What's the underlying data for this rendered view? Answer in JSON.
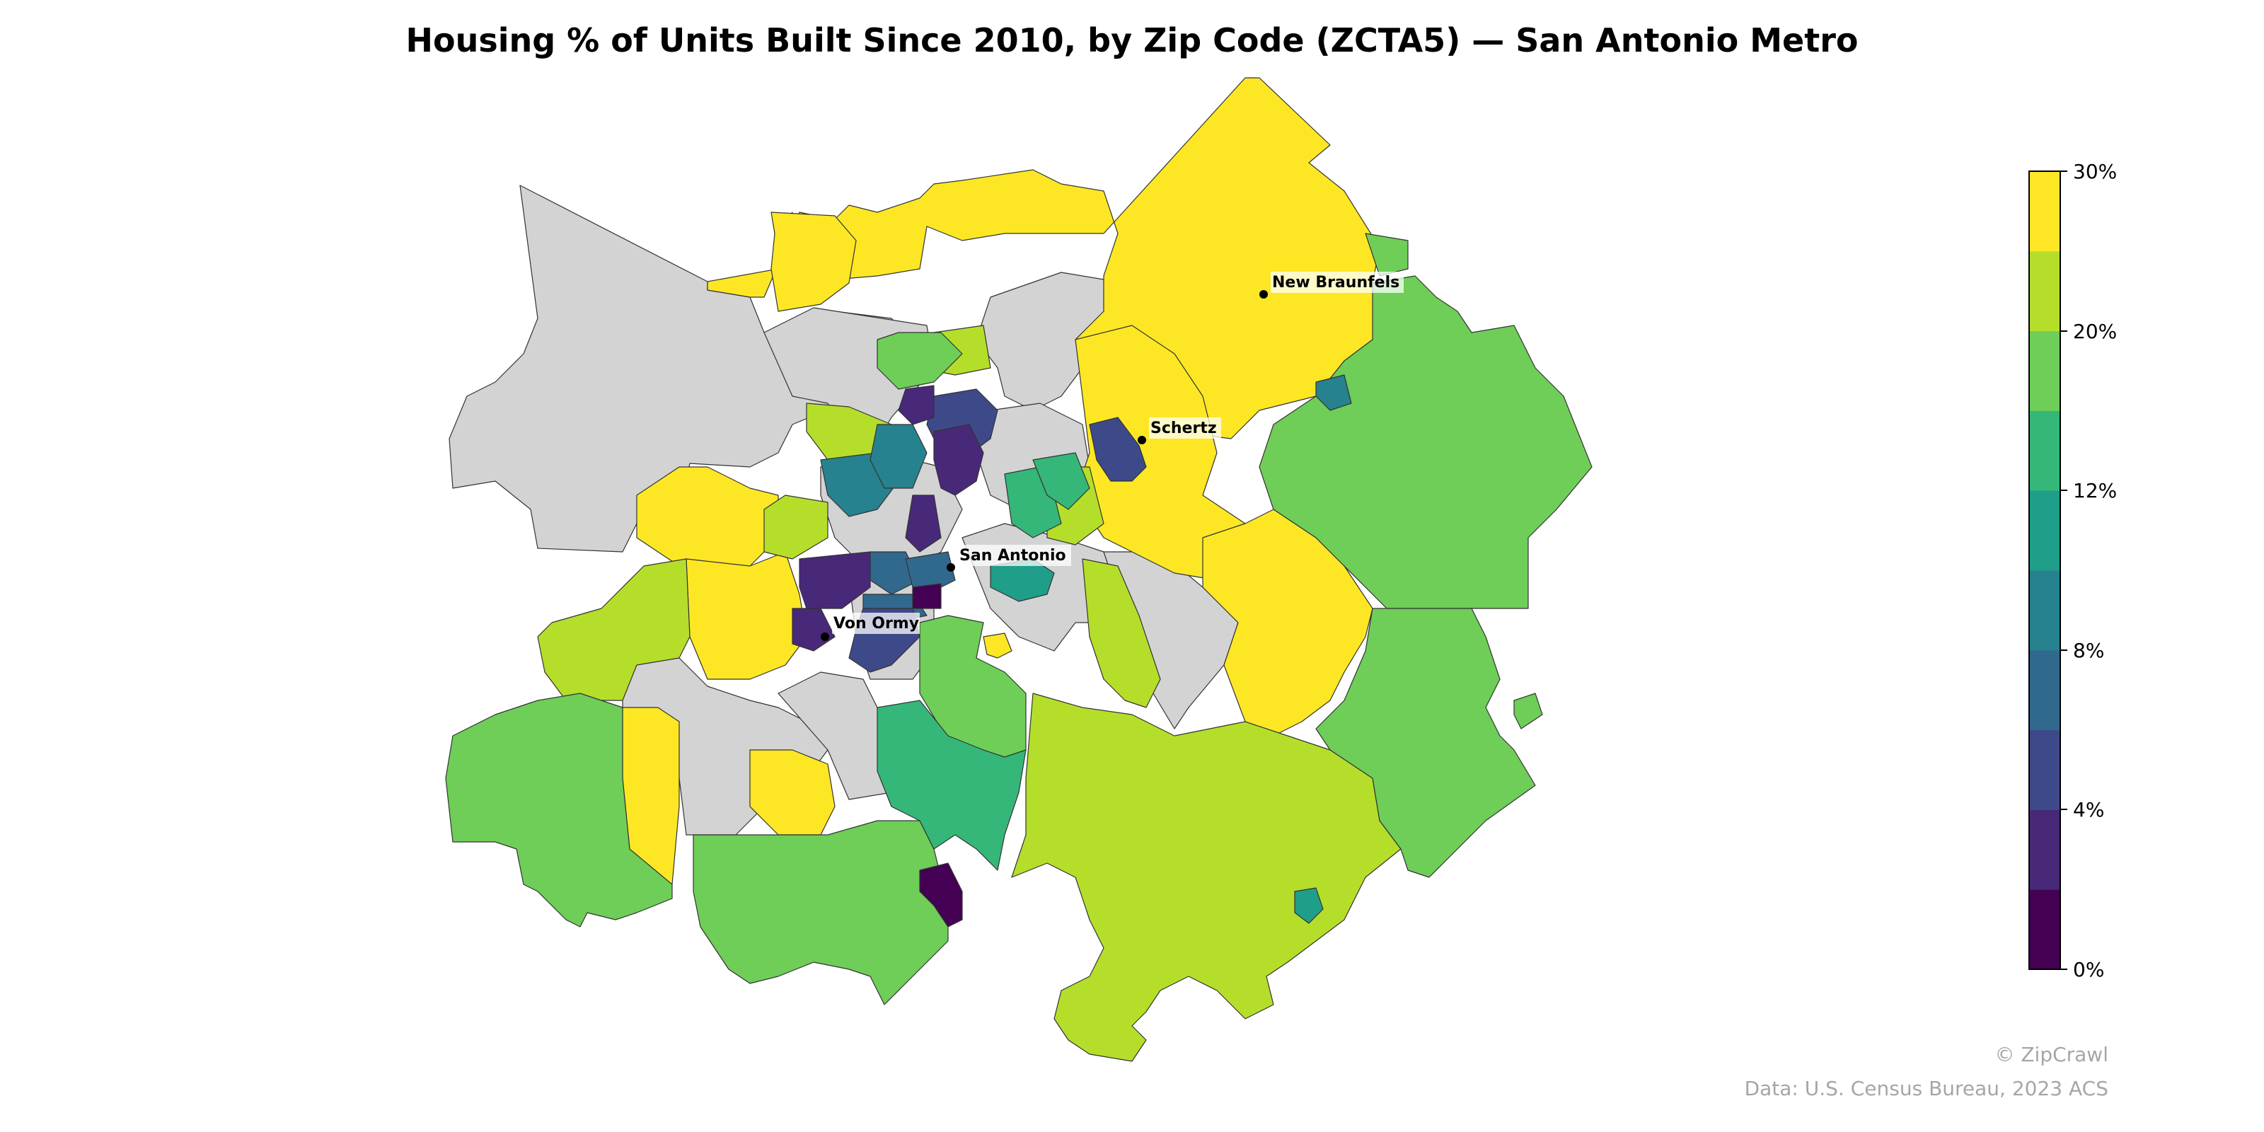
{
  "title": "Housing % of Units Built Since 2010, by Zip Code (ZCTA5) — San Antonio Metro",
  "cities": [
    {
      "name": "New Braunfels"
    },
    {
      "name": "Schertz"
    },
    {
      "name": "San Antonio"
    },
    {
      "name": "Von Ormy"
    }
  ],
  "legend": {
    "ticks": [
      "30%",
      "20%",
      "12%",
      "8%",
      "4%",
      "0%"
    ],
    "bins_low_to_high": [
      "#440154",
      "#482878",
      "#3e4989",
      "#31688e",
      "#26828e",
      "#1f9e89",
      "#35b779",
      "#6ece58",
      "#b5de2b",
      "#fde725"
    ],
    "no_data_color": "#d3d3d3"
  },
  "credit": "© ZipCrawl",
  "source": "Data: U.S. Census Bureau, 2023 ACS"
}
